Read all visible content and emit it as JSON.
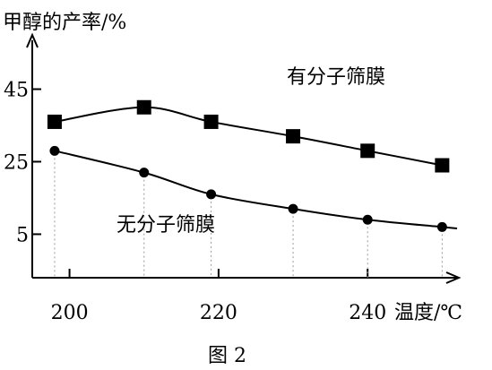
{
  "figure": {
    "caption": "图 2"
  },
  "chart_data": {
    "type": "line",
    "ylabel": "甲醇的产率/%",
    "xlabel": "温度/℃",
    "x_ticks": [
      200,
      220,
      240
    ],
    "y_ticks": [
      5,
      25,
      45
    ],
    "xlim": [
      195,
      252
    ],
    "ylim": [
      -7,
      56
    ],
    "grid": false,
    "legend": "none",
    "series": [
      {
        "name": "有分子筛膜",
        "marker": "square",
        "x": [
          198,
          210,
          219,
          230,
          240,
          250
        ],
        "y": [
          36,
          40,
          36,
          32,
          28,
          24
        ],
        "curve_y": [
          36,
          40,
          39,
          36,
          34,
          32,
          30,
          28,
          24
        ]
      },
      {
        "name": "无分子筛膜",
        "marker": "circle",
        "x": [
          198,
          210,
          219,
          230,
          240,
          250
        ],
        "y": [
          28,
          22,
          16,
          12,
          9,
          7
        ],
        "curve_y": [
          28,
          22,
          16,
          14,
          12,
          11,
          9,
          7,
          6
        ]
      }
    ]
  }
}
